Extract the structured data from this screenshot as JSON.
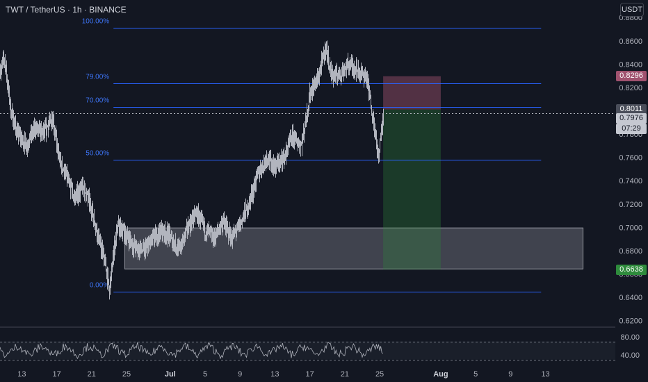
{
  "header": {
    "symbol": "TWT / TetherUS · 1h · BINANCE",
    "unit_button": "USDT"
  },
  "price_tags": {
    "stop": "0.8296",
    "entry": "0.8011",
    "last": "0.7976",
    "countdown": "07:29",
    "target": "0.6638"
  },
  "colors": {
    "background": "#131722",
    "fib_line": "#2962ff",
    "candle": "#b2b5be",
    "zone": "#787b86",
    "stop_zone": "#a0526f",
    "target_zone": "#2e8b3c"
  },
  "chart_data": [
    {
      "type": "candlestick",
      "y_axis_ticks": [
        "0.8800",
        "0.8600",
        "0.8400",
        "0.8200",
        "0.8000",
        "0.7800",
        "0.7600",
        "0.7400",
        "0.7200",
        "0.7000",
        "0.6800",
        "0.6600",
        "0.6400",
        "0.6200"
      ],
      "y_axis_values": [
        0.88,
        0.86,
        0.84,
        0.82,
        0.8,
        0.78,
        0.76,
        0.74,
        0.72,
        0.7,
        0.68,
        0.66,
        0.64,
        0.62
      ],
      "ylim": [
        0.615,
        0.895
      ],
      "x_axis_ticks": [
        "13",
        "17",
        "21",
        "25",
        "Jul",
        "5",
        "9",
        "13",
        "17",
        "21",
        "25",
        "Aug",
        "5",
        "9",
        "13"
      ],
      "x_axis_days": [
        -18,
        -14,
        -10,
        -6,
        -1,
        3,
        7,
        11,
        15,
        19,
        23,
        30,
        34,
        38,
        42
      ],
      "xlim": [
        -20.5,
        50
      ],
      "last_day": 23.4,
      "price_path": [
        [
          -20.5,
          0.835
        ],
        [
          -20.0,
          0.845
        ],
        [
          -19.3,
          0.8
        ],
        [
          -18.5,
          0.78
        ],
        [
          -17.5,
          0.77
        ],
        [
          -16.5,
          0.785
        ],
        [
          -15.5,
          0.78
        ],
        [
          -14.5,
          0.795
        ],
        [
          -13.8,
          0.76
        ],
        [
          -13.0,
          0.745
        ],
        [
          -12.0,
          0.725
        ],
        [
          -11.0,
          0.735
        ],
        [
          -10.0,
          0.715
        ],
        [
          -9.2,
          0.69
        ],
        [
          -8.5,
          0.67
        ],
        [
          -8.0,
          0.645
        ],
        [
          -7.5,
          0.68
        ],
        [
          -7.0,
          0.7
        ],
        [
          -6.0,
          0.693
        ],
        [
          -5.0,
          0.682
        ],
        [
          -4.0,
          0.68
        ],
        [
          -3.0,
          0.69
        ],
        [
          -2.0,
          0.698
        ],
        [
          -1.0,
          0.692
        ],
        [
          0.0,
          0.68
        ],
        [
          1.0,
          0.7
        ],
        [
          2.0,
          0.712
        ],
        [
          3.0,
          0.698
        ],
        [
          4.0,
          0.69
        ],
        [
          5.0,
          0.705
        ],
        [
          6.0,
          0.69
        ],
        [
          7.0,
          0.703
        ],
        [
          8.0,
          0.72
        ],
        [
          9.0,
          0.745
        ],
        [
          10.0,
          0.76
        ],
        [
          11.0,
          0.752
        ],
        [
          12.0,
          0.76
        ],
        [
          13.0,
          0.778
        ],
        [
          14.0,
          0.77
        ],
        [
          15.0,
          0.815
        ],
        [
          16.0,
          0.83
        ],
        [
          16.8,
          0.855
        ],
        [
          17.5,
          0.83
        ],
        [
          18.5,
          0.832
        ],
        [
          19.5,
          0.84
        ],
        [
          20.5,
          0.835
        ],
        [
          21.5,
          0.828
        ],
        [
          22.3,
          0.79
        ],
        [
          22.8,
          0.76
        ],
        [
          23.4,
          0.7976
        ]
      ],
      "fibonacci": {
        "levels": [
          {
            "label": "100.00%",
            "price": 0.871
          },
          {
            "label": "79.00%",
            "price": 0.8235
          },
          {
            "label": "70.00%",
            "price": 0.8031
          },
          {
            "label": "50.00%",
            "price": 0.7578
          },
          {
            "label": "0.00%",
            "price": 0.6447
          }
        ],
        "start_day": -7.5,
        "end_day": 41.5
      },
      "demand_zone": {
        "start_day": -6.2,
        "end_day": 46.3,
        "top": 0.6995,
        "bottom": 0.6643
      },
      "position": {
        "start_day": 23.4,
        "end_day": 30.0,
        "stop": 0.8296,
        "entry": 0.8011,
        "target": 0.6638
      }
    },
    {
      "type": "line",
      "indicator": "oscillator",
      "y_axis_ticks": [
        "80.00",
        "40.00"
      ],
      "y_axis_values": [
        80,
        40
      ],
      "ylim": [
        20,
        100
      ],
      "bands": [
        70,
        30
      ]
    }
  ]
}
